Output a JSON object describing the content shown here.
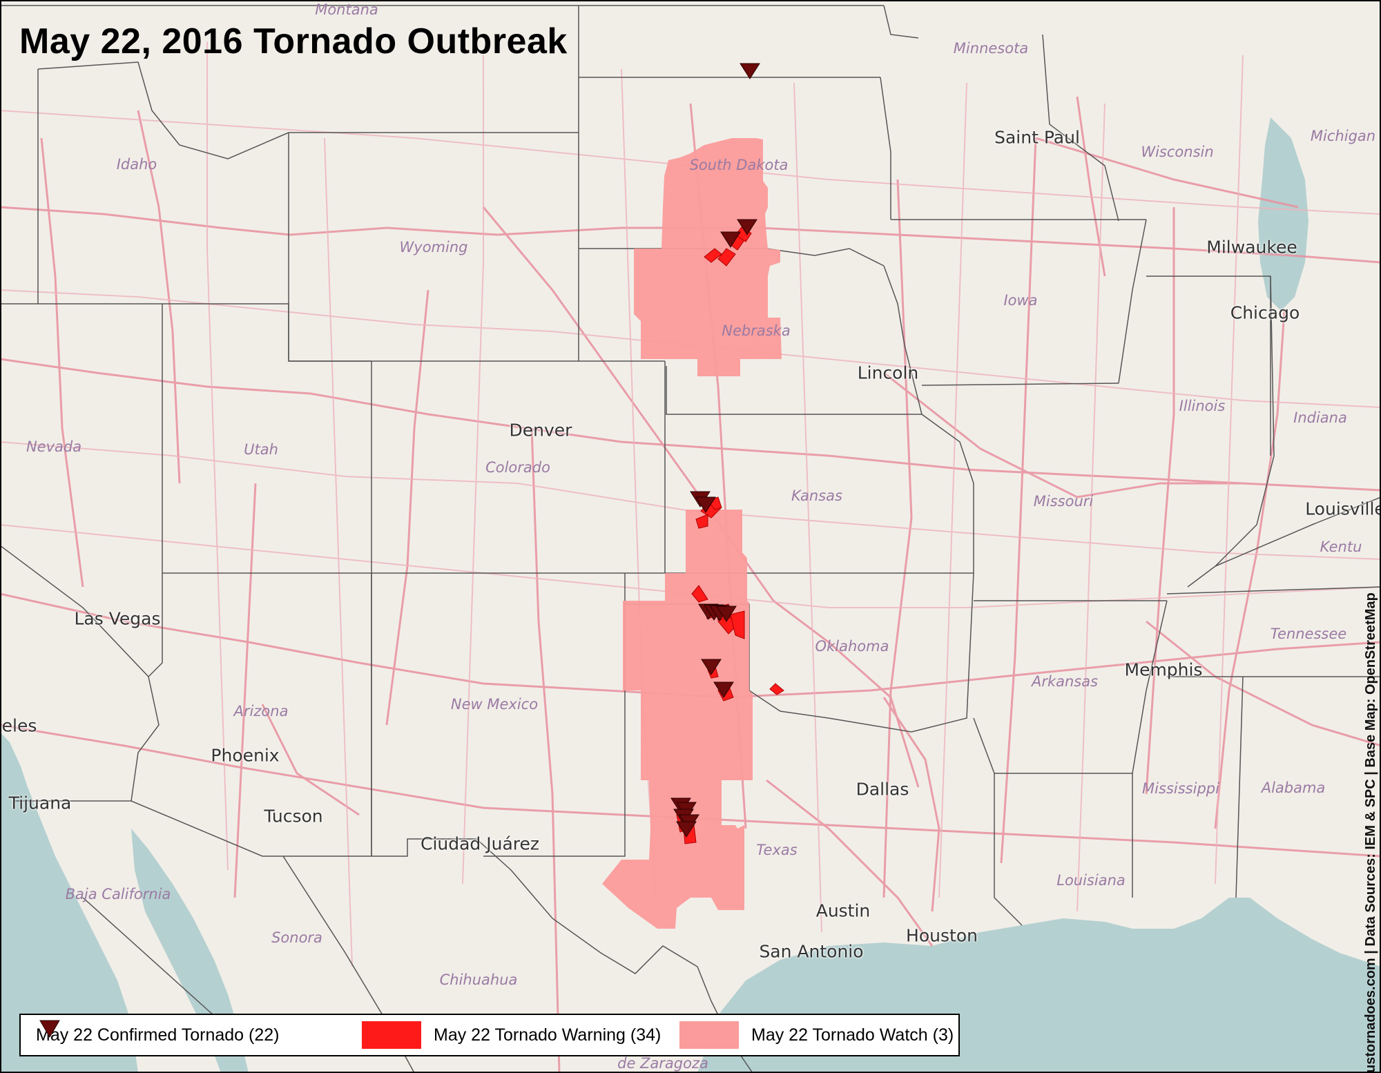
{
  "title": "May 22, 2016 Tornado Outbreak",
  "credit": {
    "site": "ustornadoes.com",
    "sources": "Data Sources: IEM & SPC | Base Map: OpenStreetMap"
  },
  "colors": {
    "land": "#f1eee8",
    "water": "#b5d0d0",
    "roads": "#e8909e",
    "borders": "#444444",
    "watch": "#fb9b9b",
    "warning": "#ff1a1a",
    "tornado": "#6a0a0a"
  },
  "legend": [
    {
      "label": "May 22 Confirmed Tornado (22)",
      "icon": "tornado-triangle-icon"
    },
    {
      "label": "May 22 Tornado Warning (34)",
      "icon": "warning-swatch"
    },
    {
      "label": "May 22 Tornado Watch (3)",
      "icon": "watch-swatch"
    }
  ],
  "labels": {
    "states": {
      "montana": "Montana",
      "minnesota": "Minnesota",
      "idaho": "Idaho",
      "wyoming": "Wyoming",
      "south_dakota": "South Dakota",
      "wisconsin": "Wisconsin",
      "michigan": "Michigan",
      "iowa": "Iowa",
      "nebraska": "Nebraska",
      "nevada": "Nevada",
      "utah": "Utah",
      "colorado": "Colorado",
      "kansas": "Kansas",
      "illinois": "Illinois",
      "indiana": "Indiana",
      "missouri": "Missouri",
      "kentucky": "Kentu",
      "tennessee": "Tennessee",
      "oklahoma": "Oklahoma",
      "arkansas": "Arkansas",
      "arizona": "Arizona",
      "new_mexico": "New Mexico",
      "texas": "Texas",
      "mississippi": "Mississippi",
      "alabama": "Alabama",
      "louisiana": "Louisiana"
    },
    "mexico": {
      "baja": "Baja California",
      "sonora": "Sonora",
      "chihuahua": "Chihuahua",
      "zaragoza": "de Zaragoza"
    },
    "cities": {
      "saint_paul": "Saint Paul",
      "milwaukee": "Milwaukee",
      "chicago": "Chicago",
      "lincoln": "Lincoln",
      "denver": "Denver",
      "louisville": "Louisville",
      "las_vegas": "Las Vegas",
      "memphis": "Memphis",
      "angeles": "eles",
      "phoenix": "Phoenix",
      "tijuana": "Tijuana",
      "tucson": "Tucson",
      "ciudad_juarez": "Ciudad Juárez",
      "dallas": "Dallas",
      "austin": "Austin",
      "houston": "Houston",
      "san_antonio": "San Antonio"
    }
  }
}
